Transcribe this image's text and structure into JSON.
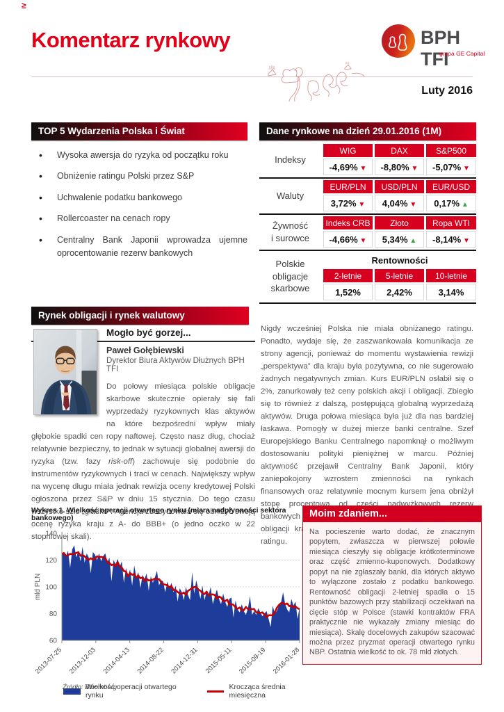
{
  "colors": {
    "accent_red": "#e20019",
    "table_header_red": "#d8001f",
    "green_up": "#2fa83c",
    "chart_area_blue": "#1e3d9b",
    "chart_line_red": "#c90001"
  },
  "page": {
    "corner_mark": "≥",
    "title": "Komentarz rynkowy",
    "date": "Luty 2016"
  },
  "logo": {
    "brand": "BPH TFI",
    "subtitle": "grupa GE Capital"
  },
  "top5": {
    "header": "TOP 5 Wydarzenia Polska i Świat",
    "items": [
      "Wysoka awersja do ryzyka od początku roku",
      "Obniżenie ratingu Polski przez S&P",
      "Uchwalenie podatku bankowego",
      "Rollercoaster na cenach ropy",
      "Centralny Bank Japonii wprowadza ujemne oprocentowanie rezerw bankowych"
    ]
  },
  "market": {
    "header": "Dane rynkowe na dzień 29.01.2016 (1M)",
    "groups": [
      {
        "label": "Indeksy",
        "cols": [
          {
            "name": "WIG",
            "value": "-4,69%",
            "dir": "down"
          },
          {
            "name": "DAX",
            "value": "-8,80%",
            "dir": "down"
          },
          {
            "name": "S&P500",
            "value": "-5,07%",
            "dir": "down"
          }
        ]
      },
      {
        "label": "Waluty",
        "cols": [
          {
            "name": "EUR/PLN",
            "value": "3,72%",
            "dir": "down"
          },
          {
            "name": "USD/PLN",
            "value": "4,04%",
            "dir": "down"
          },
          {
            "name": "EUR/USD",
            "value": "0,17%",
            "dir": "up"
          }
        ]
      },
      {
        "label": "Żywność\ni surowce",
        "cols": [
          {
            "name": "Indeks CRB",
            "value": "-4,66%",
            "dir": "down"
          },
          {
            "name": "Złoto",
            "value": "5,34%",
            "dir": "up"
          },
          {
            "name": "Ropa WTI",
            "value": "-8,14%",
            "dir": "down"
          }
        ]
      }
    ],
    "yields": {
      "label": "Polskie\nobligacje\nskarbowe",
      "span_header": "Rentowności",
      "cols": [
        {
          "name": "2-letnie",
          "value": "1,52%"
        },
        {
          "name": "5-letnie",
          "value": "2,42%"
        },
        {
          "name": "10-letnie",
          "value": "3,14%"
        }
      ]
    }
  },
  "section": {
    "header": "Rynek obligacji i rynek walutowy"
  },
  "article": {
    "headline": "Mogło być gorzej...",
    "author": "Paweł Gołębiewski",
    "role": "Dyrektor Biura Aktywów Dłużnych BPH TFI",
    "para_left_1": "Do połowy miesiąca polskie obligacje skarbowe skutecznie opierały się fali wyprzedaży ryzykownych klas aktywów na które bezpośredni wpływ miały głębokie spadki cen ropy naftowej. Często nasz dług, chociaż relatywnie bezpieczny, to jednak w sytuacji globalnej awersji do ryzyka (tzw. fazy ",
    "para_left_italic": "risk-off",
    "para_left_2": ") zachowuje się podobnie do instrumentów ryzykownych i traci w cenach. Największy wpływ na wycenę długu miała jednak rewizja oceny kredytowej Polski ogłoszona przez S&P w dniu 15 stycznia. Do tego czasu wszystko szło „gładko”. Agencja zdecydowała się obniżyć swoją ocenę ryzyka kraju z A- do BBB+ (o jedno oczko w 22 stopniowej skali).",
    "para_right": "Nigdy wcześniej Polska nie miała obniżanego ratingu. Ponadto, wydaje się, że zaszwankowała komunikacja ze strony agencji, ponieważ do momentu wystawienia rewizji „perspektywa” dla kraju była pozytywna, co nie sugerowało żadnych negatywnych zmian. Kurs EUR/PLN osłabił się o 2%, zanurkowały też ceny polskich akcji i obligacji. Zbiegło się to również z dalszą, postępującą globalną wyprzedażą aktywów. Druga połowa miesiąca była już dla nas bardziej łaskawa. Pomogły w dużej mierze banki centralne. Szef Europejskiego Banku Centralnego napomknął o możliwym dostosowaniu polityki pieniężnej w marcu. Później aktywność przejawił Centralny Bank Japonii, który zaniepokojony wzrostem zmienności na rynkach finansowych oraz relatywnie mocnym kursem jena obniżył stopę procentową od części nadwyżkowych rezerw bankowych do -0,1%. Dzięki działaniom zewnętrznym ceny obligacji krajowych wróciły do poziomów sprzed obniżki ratingu."
  },
  "chart_data": {
    "type": "area",
    "title": "Wykres 1. Wielkość operacji otwartego rynku (miara nadpłynności sektora bankowego)",
    "ylabel": "mld PLN",
    "ylim": [
      60,
      140
    ],
    "yticks": [
      60,
      80,
      100,
      120,
      140
    ],
    "grid": "dotted horizontal",
    "legend_position": "bottom",
    "x_labels": [
      "2013-07-25",
      "2013-12-03",
      "2014-04-13",
      "2014-08-22",
      "2014-12-31",
      "2015-05-11",
      "2015-09-19",
      "2016-01-28"
    ],
    "legend": [
      "Wielkość operacji otwartego rynku",
      "Krocząca średnia miesięczna"
    ],
    "series": [
      {
        "name": "Wielkość operacji otwartego rynku",
        "style": "area",
        "values": [
          125,
          126,
          123,
          127,
          114,
          128,
          131,
          122,
          127,
          119,
          130,
          118,
          125,
          122,
          110,
          126,
          124,
          120,
          125,
          119,
          123,
          125,
          118,
          122,
          104,
          120,
          117,
          121,
          115,
          119,
          103,
          114,
          108,
          113,
          101,
          116,
          107,
          111,
          99,
          109,
          106,
          110,
          97,
          108,
          103,
          107,
          112,
          101,
          105,
          104,
          96,
          104,
          99,
          103,
          96,
          101,
          89,
          99,
          96,
          90,
          100,
          94,
          90,
          111,
          95,
          105,
          98,
          91,
          101,
          90,
          97,
          94,
          100,
          87,
          93,
          98,
          91,
          87,
          95,
          89,
          85,
          91,
          92,
          77,
          90,
          83,
          81,
          87,
          82,
          79,
          84,
          93,
          79,
          82,
          79,
          84,
          81,
          78,
          80,
          82,
          76,
          70,
          86,
          80,
          82,
          86,
          88,
          96,
          87,
          83,
          81,
          91,
          86,
          89,
          76,
          85
        ]
      },
      {
        "name": "Krocząca średnia miesięczna",
        "style": "line",
        "derived": "moving_average_5_of_series_0"
      }
    ]
  },
  "opinion": {
    "header": "Moim zdaniem...",
    "body": "Na pocieszenie warto dodać, że znacznym popytem, zwłaszcza w pierwszej połowie miesiąca cieszyły się obligacje krótkoterminowe oraz część zmienno-kuponowych. Dodatkowy popyt na nie zgłaszały banki, dla których aktywo to wyłączone zostało z podatku bankowego. Rentowność obligacji 2-letniej spadła o 15 punktów bazowych przy stabilizacji oczekiwań na cięcie stóp w Polsce (stawki kontraktów FRA praktycznie nie wykazały zmiany miesiąc do miesiąca). Skalę docelowych zakupów szacować można przez pryzmat operacji otwartego rynku NBP. Ostatnia wielkość to ok. 78 mld złotych."
  },
  "source": "Źródło: Bloomberg"
}
